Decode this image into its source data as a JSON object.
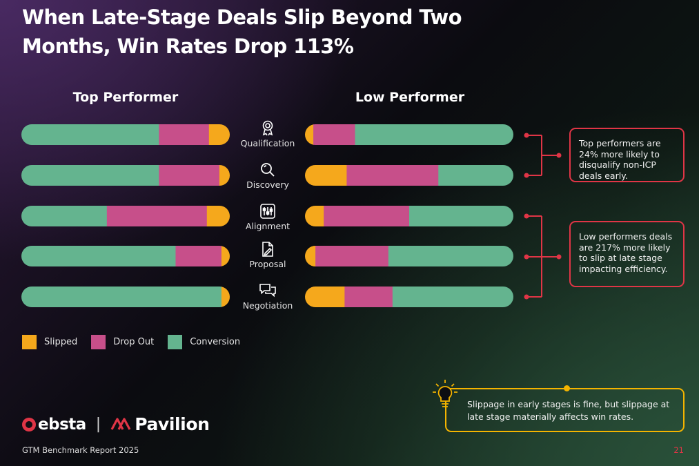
{
  "title": "When Late-Stage Deals Slip Beyond Two Months, Win Rates Drop 113%",
  "columns": {
    "top": "Top Performer",
    "low": "Low Performer"
  },
  "stages": [
    {
      "label": "Qualification",
      "icon": "award-ribbon-icon"
    },
    {
      "label": "Discovery",
      "icon": "magnifier-icon"
    },
    {
      "label": "Alignment",
      "icon": "sliders-icon"
    },
    {
      "label": "Proposal",
      "icon": "document-edit-icon"
    },
    {
      "label": "Negotiation",
      "icon": "chat-bubbles-icon"
    }
  ],
  "colors": {
    "slipped": "#f5a81c",
    "drop_out": "#c74f8a",
    "conversion": "#64b48f",
    "accent_red": "#e03546",
    "accent_yellow": "#f4b400"
  },
  "chart_data": {
    "type": "bar",
    "orientation": "horizontal",
    "stacked": true,
    "categories": [
      "Qualification",
      "Discovery",
      "Alignment",
      "Proposal",
      "Negotiation"
    ],
    "legend": [
      "Slipped",
      "Drop Out",
      "Conversion"
    ],
    "top_performer": {
      "order": [
        "Conversion",
        "Drop Out",
        "Slipped"
      ],
      "series": [
        {
          "name": "Conversion",
          "values": [
            66,
            66,
            41,
            74,
            96
          ]
        },
        {
          "name": "Drop Out",
          "values": [
            24,
            29,
            48,
            22,
            0
          ]
        },
        {
          "name": "Slipped",
          "values": [
            10,
            5,
            11,
            4,
            4
          ]
        }
      ]
    },
    "low_performer": {
      "order": [
        "Slipped",
        "Drop Out",
        "Conversion"
      ],
      "series": [
        {
          "name": "Slipped",
          "values": [
            4,
            20,
            9,
            5,
            19
          ]
        },
        {
          "name": "Drop Out",
          "values": [
            20,
            44,
            41,
            35,
            23
          ]
        },
        {
          "name": "Conversion",
          "values": [
            76,
            36,
            50,
            60,
            58
          ]
        }
      ]
    }
  },
  "callouts": {
    "early": "Top performers are 24% more likely to disqualify non-ICP deals early.",
    "late": "Low performers deals are 217% more likely to slip at late stage impacting efficiency."
  },
  "legend": {
    "slipped": "Slipped",
    "drop_out": "Drop Out",
    "conversion": "Conversion"
  },
  "insight": "Slippage in early stages is fine, but slippage at late stage materially affects win rates.",
  "logos": {
    "ebsta": "ebsta",
    "separator": "|",
    "pavilion": "Pavilion"
  },
  "footer": {
    "report": "GTM Benchmark Report 2025",
    "page": "21"
  }
}
